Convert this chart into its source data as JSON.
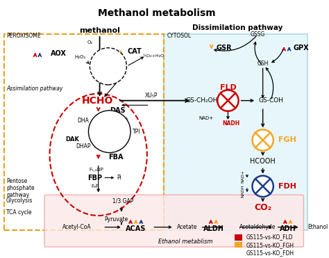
{
  "title": "Methanol metabolism",
  "bg_color": "#ffffff",
  "legend_items": [
    {
      "label": "GS115-vs-KO_FLD",
      "color": "#cc0000"
    },
    {
      "label": "GS115-vs-KO_FGH",
      "color": "#f5a623"
    },
    {
      "label": "GS115-vs-KO_FDH",
      "color": "#1a3a8c"
    }
  ]
}
